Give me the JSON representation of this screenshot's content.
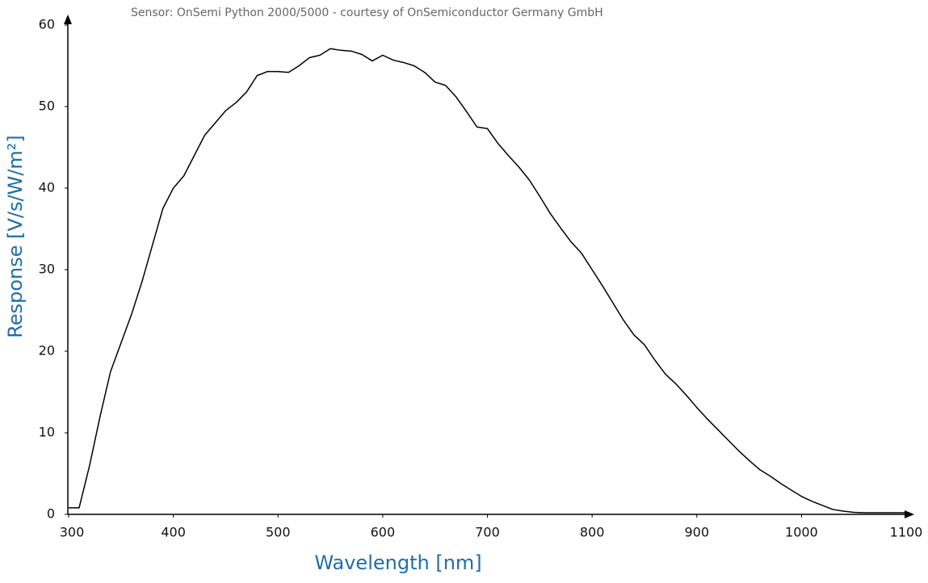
{
  "chart_data": {
    "type": "line",
    "subtitle": "Sensor: OnSemi Python 2000/5000 - courtesy of OnSemiconductor Germany GmbH",
    "x_label": "Wavelength [nm]",
    "y_label": "Response [V/s/W/m²]",
    "x": [
      300,
      310,
      320,
      330,
      340,
      350,
      360,
      370,
      380,
      390,
      400,
      410,
      420,
      430,
      440,
      450,
      460,
      470,
      480,
      490,
      500,
      510,
      520,
      530,
      540,
      550,
      560,
      570,
      580,
      590,
      600,
      610,
      620,
      630,
      640,
      650,
      660,
      670,
      680,
      690,
      700,
      710,
      720,
      730,
      740,
      750,
      760,
      770,
      780,
      790,
      800,
      810,
      820,
      830,
      840,
      850,
      860,
      870,
      880,
      890,
      900,
      910,
      920,
      930,
      940,
      950,
      960,
      970,
      980,
      990,
      1000,
      1010,
      1020,
      1030,
      1040,
      1050,
      1060,
      1070,
      1080,
      1090,
      1100
    ],
    "series": [
      {
        "name": "Response",
        "color": "#000000",
        "values": [
          0.8,
          0.8,
          6,
          12,
          17.5,
          21,
          24.5,
          28.5,
          33,
          37.5,
          40,
          41.5,
          44,
          46.5,
          48,
          49.5,
          50.5,
          51.8,
          53.8,
          54.3,
          54.3,
          54.2,
          55,
          56,
          56.3,
          57.1,
          56.9,
          56.8,
          56.4,
          55.6,
          56.3,
          55.7,
          55.4,
          55,
          54.2,
          53,
          52.6,
          51.2,
          49.4,
          47.5,
          47.3,
          45.5,
          44,
          42.6,
          41,
          39,
          36.9,
          35.1,
          33.4,
          32,
          30,
          28,
          25.9,
          23.8,
          22,
          20.8,
          18.9,
          17.2,
          16,
          14.6,
          13.1,
          11.7,
          10.4,
          9.1,
          7.8,
          6.6,
          5.5,
          4.7,
          3.8,
          3,
          2.2,
          1.6,
          1.1,
          0.6,
          0.4,
          0.25,
          0.2,
          0.2,
          0.2,
          0.2,
          0.2
        ]
      }
    ],
    "xlim": [
      300,
      1100
    ],
    "xticks": [
      300,
      400,
      500,
      600,
      700,
      800,
      900,
      1000,
      1100
    ],
    "ylim": [
      0,
      60
    ],
    "yticks": [
      0,
      10,
      20,
      30,
      40,
      50,
      60
    ],
    "grid": false
  }
}
